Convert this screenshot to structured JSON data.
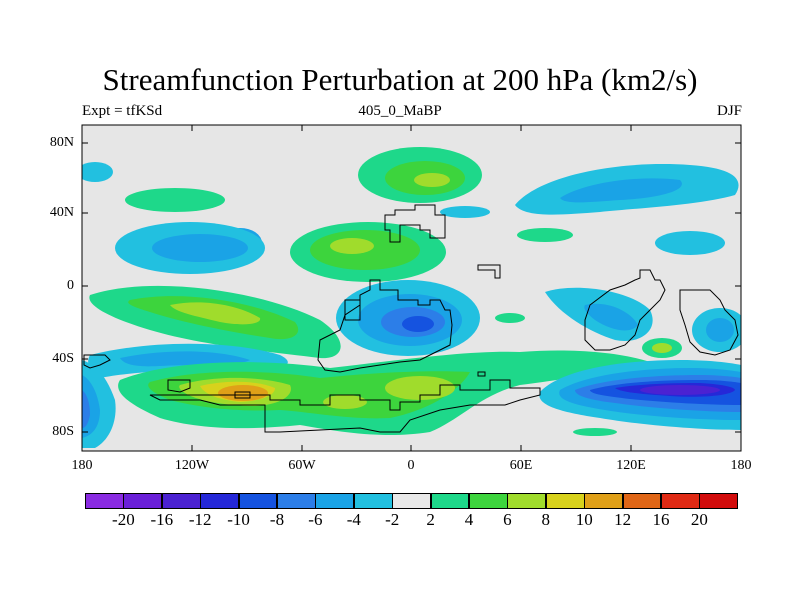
{
  "title": "Streamfunction Perturbation at 200 hPa (km2/s)",
  "subtitle_left": "Expt = tfKSd",
  "subtitle_center": "405_0_MaBP",
  "subtitle_right": "DJF",
  "y_ticks": [
    "80N",
    "40N",
    "0",
    "40S",
    "80S"
  ],
  "x_ticks": [
    "180",
    "120W",
    "60W",
    "0",
    "60E",
    "120E",
    "180"
  ],
  "colorbar": {
    "labels": [
      "-20",
      "-16",
      "-12",
      "-10",
      "-8",
      "-6",
      "-4",
      "-2",
      "2",
      "4",
      "6",
      "8",
      "10",
      "12",
      "16",
      "20"
    ],
    "colors": [
      "#8a2be2",
      "#6a1fd8",
      "#4b22d2",
      "#2528d8",
      "#1553e0",
      "#2c7ee8",
      "#1aa3e6",
      "#22c0e0",
      "#e8e8e8",
      "#1ed88a",
      "#3dd43d",
      "#a0dc2c",
      "#d8d21c",
      "#e0a018",
      "#e06616",
      "#e02a14",
      "#d20c0c"
    ]
  },
  "map_data": {
    "type": "filled-contour-map",
    "projection": "cylindrical-equidistant",
    "lon_range": [
      -180,
      180
    ],
    "lat_range": [
      -90,
      90
    ],
    "units": "km2/s",
    "features": [
      {
        "name": "north-pacific-positive",
        "lon": 0,
        "lat": 60,
        "peak": 6
      },
      {
        "name": "pacific-negative-band",
        "lon": 140,
        "lat": 55,
        "peak": -8
      },
      {
        "name": "subtropical-atlantic-positive",
        "lon": -40,
        "lat": 22,
        "peak": 8
      },
      {
        "name": "north-pacific-negative",
        "lon": -135,
        "lat": 22,
        "peak": -6
      },
      {
        "name": "southern-atlantic-negative",
        "lon": 5,
        "lat": -22,
        "peak": -12
      },
      {
        "name": "south-pacific-positive",
        "lon": -105,
        "lat": -20,
        "peak": 8
      },
      {
        "name": "southern-ocean-positive",
        "lon": -90,
        "lat": -60,
        "peak": 12
      },
      {
        "name": "southern-indian-negative",
        "lon": 140,
        "lat": -55,
        "peak": -16
      }
    ]
  }
}
